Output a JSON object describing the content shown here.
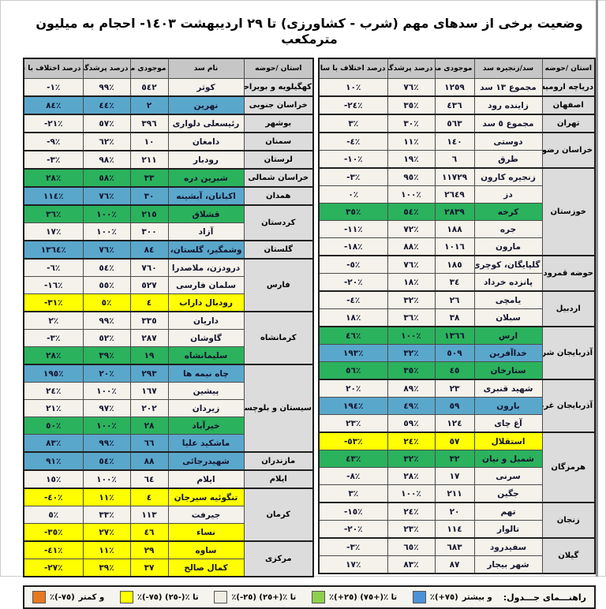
{
  "title": "وضعیت برخی از سدهای مهم (شرب - کشاورزی) تا ٢٩ اردیبهشت ١٤٠٣- احجام به میلیون مترمکعب",
  "status_colors": {
    "white": "#f4f2ea",
    "green": "#2bb25d",
    "blue": "#5aa7cc",
    "yellow": "#ffff00"
  },
  "tables": [
    {
      "id": "right",
      "columns": [
        "استان /حوضه",
        "سد/زنجیره سد",
        "موجودی مخزن",
        "درصد پرشدگی",
        "درصد اختلاف با سال قبل"
      ],
      "groups": [
        {
          "province": "دریاچه ارومیه",
          "rows": [
            {
              "dam": "مجموع ١٣ سد",
              "storage": "١٢٥٩",
              "fill": "٧٦٪",
              "diff": "١٠٪",
              "status": "white"
            }
          ]
        },
        {
          "province": "اصفهان",
          "rows": [
            {
              "dam": "زاینده رود",
              "storage": "٤٣٦",
              "fill": "٣٥٪",
              "diff": "-٢٤٪",
              "status": "white"
            }
          ]
        },
        {
          "province": "تهران",
          "rows": [
            {
              "dam": "مجموع ٥ سد",
              "storage": "٥٦٣",
              "fill": "٣٠٪",
              "diff": "٣٪",
              "status": "white"
            }
          ]
        },
        {
          "province": "خراسان رضوی",
          "rows": [
            {
              "dam": "دوستی",
              "storage": "١٤٠",
              "fill": "١١٪",
              "diff": "-٤٪",
              "status": "white"
            },
            {
              "dam": "طرق",
              "storage": "٦",
              "fill": "١٩٪",
              "diff": "-١٠٪",
              "status": "white"
            }
          ]
        },
        {
          "province": "خوزستان",
          "rows": [
            {
              "dam": "زنجیره کارون",
              "storage": "١١٧٢٩",
              "fill": "٩٥٪",
              "diff": "-٣٪",
              "status": "white"
            },
            {
              "dam": "دز",
              "storage": "٢٦٤٩",
              "fill": "١٠٠٪",
              "diff": "٠٪",
              "status": "white"
            },
            {
              "dam": "کرخه",
              "storage": "٢٨٣٩",
              "fill": "٥٤٪",
              "diff": "٣٥٪",
              "status": "green"
            },
            {
              "dam": "جره",
              "storage": "١٨٨",
              "fill": "٧٢٪",
              "diff": "-١١٪",
              "status": "white"
            },
            {
              "dam": "مارون",
              "storage": "١٠١٦",
              "fill": "٨٨٪",
              "diff": "-١٨٪",
              "status": "white"
            }
          ]
        },
        {
          "province": "حوضه قمرود",
          "rows": [
            {
              "dam": "گلپایگان، کوچری",
              "storage": "١٨٥",
              "fill": "٧٦٪",
              "diff": "-٥٪",
              "status": "white"
            },
            {
              "dam": "پانزده خرداد",
              "storage": "٣٤",
              "fill": "١٨٪",
              "diff": "-٢٠٪",
              "status": "white"
            }
          ]
        },
        {
          "province": "اردبیل",
          "rows": [
            {
              "dam": "یامچی",
              "storage": "٢٦",
              "fill": "٣٢٪",
              "diff": "-٤٪",
              "status": "white"
            },
            {
              "dam": "سبلان",
              "storage": "٣٨",
              "fill": "٣٦٪",
              "diff": "١٨٪",
              "status": "white"
            }
          ]
        },
        {
          "province": "آذربایجان شرقی",
          "rows": [
            {
              "dam": "ارس",
              "storage": "١٣٦٦",
              "fill": "١٠٠٪",
              "diff": "٤٦٪",
              "status": "green"
            },
            {
              "dam": "خداآفرین",
              "storage": "٥٠٩",
              "fill": "٣٢٪",
              "diff": "١٩٣٪",
              "status": "blue"
            },
            {
              "dam": "ستارخان",
              "storage": "٤٥",
              "fill": "٣٥٪",
              "diff": "٥٦٪",
              "status": "green"
            }
          ]
        },
        {
          "province": "آذربایجان غربی",
          "rows": [
            {
              "dam": "شهید قنبری",
              "storage": "٢٣",
              "fill": "٨٩٪",
              "diff": "٢٠٪",
              "status": "white"
            },
            {
              "dam": "بارون",
              "storage": "٥٩",
              "fill": "٤٩٪",
              "diff": "١٩٤٪",
              "status": "blue"
            },
            {
              "dam": "آغ چای",
              "storage": "١٢٤",
              "fill": "٥٩٪",
              "diff": "٢٣٪",
              "status": "white"
            }
          ]
        },
        {
          "province": "هرمزگان",
          "rows": [
            {
              "dam": "استقلال",
              "storage": "٥٧",
              "fill": "٢٤٪",
              "diff": "-٥٣٪",
              "status": "yellow"
            },
            {
              "dam": "شمیل و نیان",
              "storage": "٣٢",
              "fill": "٣٢٪",
              "diff": "٤٣٪",
              "status": "green"
            },
            {
              "dam": "سرنی",
              "storage": "١٧",
              "fill": "٢٨٪",
              "diff": "-٨٪",
              "status": "white"
            },
            {
              "dam": "جگین",
              "storage": "٢١١",
              "fill": "١٠٠٪",
              "diff": "٣٪",
              "status": "white"
            }
          ]
        },
        {
          "province": "زنجان",
          "rows": [
            {
              "dam": "تهم",
              "storage": "٢٠",
              "fill": "٢٤٪",
              "diff": "-١٥٪",
              "status": "white"
            },
            {
              "dam": "تالوار",
              "storage": "١١٤",
              "fill": "٢٣٪",
              "diff": "-٢٠٪",
              "status": "white"
            }
          ]
        },
        {
          "province": "گیلان",
          "rows": [
            {
              "dam": "سفیدرود",
              "storage": "٦٨٣",
              "fill": "٦٥٪",
              "diff": "-٣٪",
              "status": "white"
            },
            {
              "dam": "شهر بیجار",
              "storage": "٨٧",
              "fill": "٨٣٪",
              "diff": "١٧٪",
              "status": "white"
            }
          ]
        }
      ]
    },
    {
      "id": "left",
      "columns": [
        "استان /حوضه",
        "نام سد",
        "موجودی مخزن",
        "درصد پرشدگی",
        "درصد اختلاف با سال قبل"
      ],
      "groups": [
        {
          "province": "کهگیلویه و بویراحمد",
          "rows": [
            {
              "dam": "کوثر",
              "storage": "٥٤٢",
              "fill": "٩٩٪",
              "diff": "-١٪",
              "status": "white"
            }
          ]
        },
        {
          "province": "خراسان جنوبی",
          "rows": [
            {
              "dam": "نهرین",
              "storage": "٢",
              "fill": "٤٤٪",
              "diff": "٨٤٪",
              "status": "blue"
            }
          ]
        },
        {
          "province": "بوشهر",
          "rows": [
            {
              "dam": "رئیسعلی دلواری",
              "storage": "٣٩٦",
              "fill": "٥٧٪",
              "diff": "-٢١٪",
              "status": "white"
            }
          ]
        },
        {
          "province": "سمنان",
          "rows": [
            {
              "dam": "دامغان",
              "storage": "١٠",
              "fill": "٦٢٪",
              "diff": "-٩٪",
              "status": "white"
            }
          ]
        },
        {
          "province": "لرستان",
          "rows": [
            {
              "dam": "رودبار",
              "storage": "٢١١",
              "fill": "٩٨٪",
              "diff": "-٣٪",
              "status": "white"
            }
          ]
        },
        {
          "province": "خراسان شمالی",
          "rows": [
            {
              "dam": "شیرین دره",
              "storage": "٣٣",
              "fill": "٥٨٪",
              "diff": "٢٨٪",
              "status": "green"
            }
          ]
        },
        {
          "province": "همدان",
          "rows": [
            {
              "dam": "اکباتان، آبشینه",
              "storage": "٣٠",
              "fill": "٧٦٪",
              "diff": "١١٤٪",
              "status": "blue"
            }
          ]
        },
        {
          "province": "کردستان",
          "rows": [
            {
              "dam": "قشلاق",
              "storage": "٢١٥",
              "fill": "١٠٠٪",
              "diff": "٣٦٪",
              "status": "green"
            },
            {
              "dam": "آزاد",
              "storage": "٣٠٠",
              "fill": "١٠٠٪",
              "diff": "١٧٪",
              "status": "white"
            }
          ]
        },
        {
          "province": "گلستان",
          "rows": [
            {
              "dam": "وشمگیر، گلستان، بوستان",
              "storage": "٨٤",
              "fill": "٧٦٪",
              "diff": "١٣٦٤٪",
              "status": "blue"
            }
          ]
        },
        {
          "province": "فارس",
          "rows": [
            {
              "dam": "درودزن، ملاصدرا",
              "storage": "٧٦٠",
              "fill": "٥٤٪",
              "diff": "-٦٪",
              "status": "white"
            },
            {
              "dam": "سلمان فارسی",
              "storage": "٥٢٧",
              "fill": "٥٥٪",
              "diff": "-١٦٪",
              "status": "white"
            },
            {
              "dam": "رودبال داراب",
              "storage": "٤",
              "fill": "٥٪",
              "diff": "-٣١٪",
              "status": "yellow"
            }
          ]
        },
        {
          "province": "کرمانشاه",
          "rows": [
            {
              "dam": "داریان",
              "storage": "٣٣٥",
              "fill": "٩٩٪",
              "diff": "٢٪",
              "status": "white"
            },
            {
              "dam": "گاوشان",
              "storage": "٢٨٧",
              "fill": "٥٢٪",
              "diff": "-٣٪",
              "status": "white"
            },
            {
              "dam": "سلیمانشاه",
              "storage": "١٩",
              "fill": "٣٩٪",
              "diff": "٢٨٪",
              "status": "green"
            }
          ]
        },
        {
          "province": "سیستان و بلوچستان",
          "rows": [
            {
              "dam": "چاه نیمه ها",
              "storage": "٢٩٣",
              "fill": "٢٠٪",
              "diff": "١٩٥٪",
              "status": "blue"
            },
            {
              "dam": "پیشین",
              "storage": "١٦٧",
              "fill": "١٠٠٪",
              "diff": "٢٤٪",
              "status": "white"
            },
            {
              "dam": "زیردان",
              "storage": "٢٠٢",
              "fill": "٩٧٪",
              "diff": "٢١٪",
              "status": "white"
            },
            {
              "dam": "خیرآباد",
              "storage": "٢٨",
              "fill": "١٠٠٪",
              "diff": "٥٠٪",
              "status": "green"
            },
            {
              "dam": "ماشکید علیا",
              "storage": "٦٦",
              "fill": "٩٩٪",
              "diff": "٨٣٪",
              "status": "blue"
            }
          ]
        },
        {
          "province": "مازندران",
          "rows": [
            {
              "dam": "شهیدرجائی",
              "storage": "٨٨",
              "fill": "٥٤٪",
              "diff": "٩١٪",
              "status": "blue"
            }
          ]
        },
        {
          "province": "ایلام",
          "rows": [
            {
              "dam": "ایلام",
              "storage": "٦٤",
              "fill": "١٠٠٪",
              "diff": "١٥٪",
              "status": "white"
            }
          ]
        },
        {
          "province": "کرمان",
          "rows": [
            {
              "dam": "تنگوئیه سیرجان",
              "storage": "٤",
              "fill": "١١٪",
              "diff": "-٤٠٪",
              "status": "yellow"
            },
            {
              "dam": "جیرفت",
              "storage": "١١٣",
              "fill": "٣٣٪",
              "diff": "٥٪",
              "status": "white"
            },
            {
              "dam": "نساء",
              "storage": "٤٦",
              "fill": "٢٧٪",
              "diff": "-٣٥٪",
              "status": "yellow"
            }
          ]
        },
        {
          "province": "مرکزی",
          "rows": [
            {
              "dam": "ساوه",
              "storage": "٢٩",
              "fill": "١١٪",
              "diff": "-٤١٪",
              "status": "yellow"
            },
            {
              "dam": "کمال صالح",
              "storage": "٣٧",
              "fill": "٣٩٪",
              "diff": "-٢٧٪",
              "status": "yellow"
            }
          ]
        }
      ]
    }
  ],
  "legend": {
    "title": "راهنـــمای جـــدول:",
    "items": [
      {
        "name": "plus75-and-more",
        "color": "#4d92d8",
        "range": "٪(+٧٥)",
        "suffix": "و بیشتر"
      },
      {
        "name": "plus25-to-plus75",
        "color": "#8ed04e",
        "range": "٪(+٢٥) تا ٪(+٧٥)",
        "suffix": ""
      },
      {
        "name": "minus25-to-plus25",
        "color": "#f0eee4",
        "range": "٪(-٢٥) تا ٪(+٢٥)",
        "suffix": ""
      },
      {
        "name": "minus75-to-minus25",
        "color": "#ffff00",
        "range": "٪(-٧٥) تا ٪(-٢٥)",
        "suffix": ""
      },
      {
        "name": "minus75-and-less",
        "color": "#e8791e",
        "range": "٪(-٧٥)",
        "suffix": "و کمتر"
      }
    ]
  }
}
